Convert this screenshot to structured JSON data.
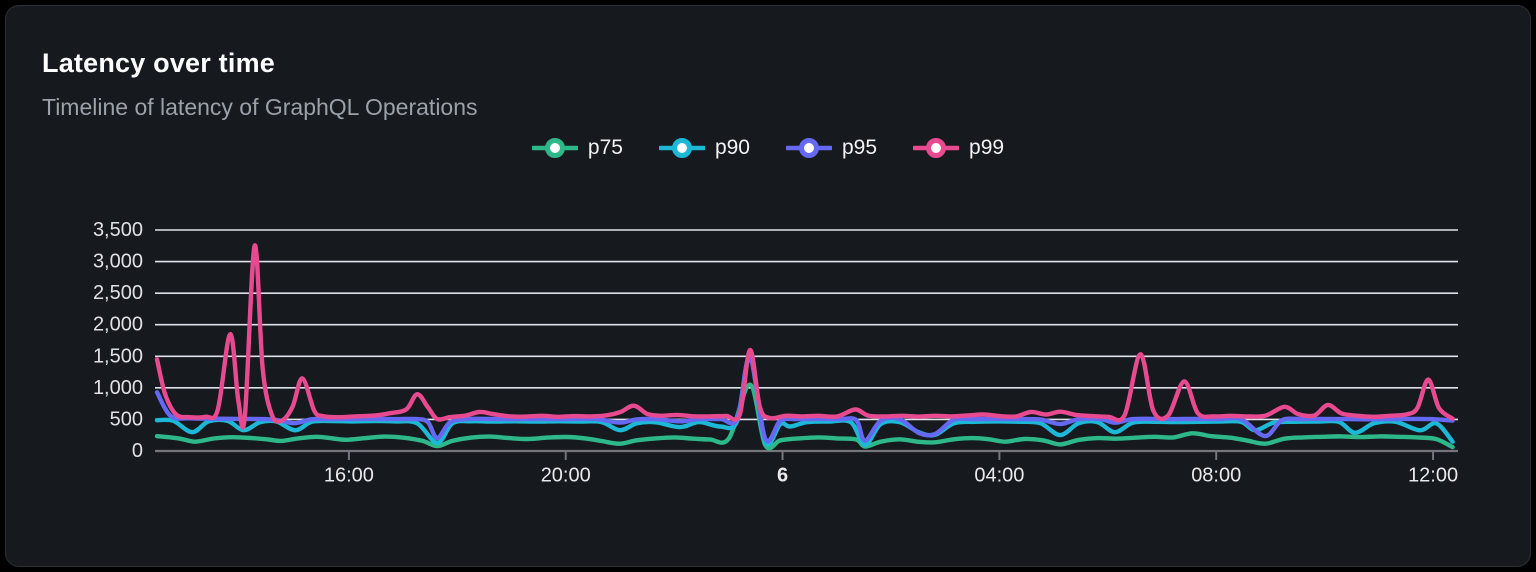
{
  "card": {
    "title": "Latency over time",
    "subtitle": "Timeline of latency of GraphQL Operations"
  },
  "colors": {
    "page_background": "#000000",
    "card_background": "#16191e",
    "card_border": "#2c2f35",
    "gridline": "#dfe2ea",
    "axis_line": "#73767c",
    "y_label": "#dfe1e6",
    "x_label": "#e8eaec",
    "title": "#ffffff",
    "subtitle": "#9ba1a9"
  },
  "chart_data": {
    "type": "line",
    "title": "Latency over time",
    "subtitle": "Timeline of latency of GraphQL Operations",
    "xlabel": "",
    "ylabel": "",
    "grid": "horizontal",
    "legend_position": "top-center",
    "y_axis": {
      "min": 0,
      "max": 3500,
      "step": 500,
      "tick_labels": [
        "0",
        "500",
        "1,000",
        "1,500",
        "2,000",
        "2,500",
        "3,000",
        "3,500"
      ]
    },
    "x_axis": {
      "span_hours": 24,
      "start_time": "12:30",
      "ticks": [
        {
          "t": 3.54,
          "label": "16:00",
          "bold": false
        },
        {
          "t": 7.54,
          "label": "20:00",
          "bold": false
        },
        {
          "t": 11.54,
          "label": "6",
          "bold": true
        },
        {
          "t": 15.54,
          "label": "04:00",
          "bold": false
        },
        {
          "t": 19.54,
          "label": "08:00",
          "bold": false
        },
        {
          "t": 23.54,
          "label": "12:00",
          "bold": false
        }
      ]
    },
    "series": [
      {
        "name": "p75",
        "color": "#2eb88a",
        "points": [
          [
            0,
            235
          ],
          [
            0.4,
            200
          ],
          [
            0.7,
            148
          ],
          [
            1.05,
            198
          ],
          [
            1.4,
            218
          ],
          [
            1.75,
            205
          ],
          [
            2.05,
            182
          ],
          [
            2.3,
            160
          ],
          [
            2.6,
            200
          ],
          [
            2.95,
            225
          ],
          [
            3.25,
            198
          ],
          [
            3.5,
            178
          ],
          [
            3.85,
            205
          ],
          [
            4.2,
            228
          ],
          [
            4.55,
            210
          ],
          [
            4.9,
            160
          ],
          [
            5.17,
            78
          ],
          [
            5.45,
            160
          ],
          [
            5.8,
            212
          ],
          [
            6.15,
            228
          ],
          [
            6.5,
            205
          ],
          [
            6.85,
            190
          ],
          [
            7.2,
            212
          ],
          [
            7.55,
            222
          ],
          [
            7.9,
            200
          ],
          [
            8.2,
            158
          ],
          [
            8.54,
            115
          ],
          [
            8.85,
            170
          ],
          [
            9.2,
            200
          ],
          [
            9.55,
            215
          ],
          [
            9.9,
            195
          ],
          [
            10.2,
            183
          ],
          [
            10.55,
            200
          ],
          [
            10.94,
            1050
          ],
          [
            11.22,
            95
          ],
          [
            11.5,
            170
          ],
          [
            11.85,
            200
          ],
          [
            12.2,
            215
          ],
          [
            12.55,
            200
          ],
          [
            12.9,
            182
          ],
          [
            13.06,
            72
          ],
          [
            13.35,
            148
          ],
          [
            13.7,
            185
          ],
          [
            14.05,
            145
          ],
          [
            14.35,
            138
          ],
          [
            14.7,
            185
          ],
          [
            15.05,
            205
          ],
          [
            15.35,
            185
          ],
          [
            15.65,
            148
          ],
          [
            16,
            190
          ],
          [
            16.35,
            168
          ],
          [
            16.66,
            105
          ],
          [
            17,
            175
          ],
          [
            17.35,
            205
          ],
          [
            17.7,
            195
          ],
          [
            18.05,
            210
          ],
          [
            18.4,
            225
          ],
          [
            18.75,
            215
          ],
          [
            19.1,
            280
          ],
          [
            19.45,
            235
          ],
          [
            19.8,
            210
          ],
          [
            20.1,
            168
          ],
          [
            20.44,
            115
          ],
          [
            20.8,
            195
          ],
          [
            21.15,
            215
          ],
          [
            21.5,
            225
          ],
          [
            21.85,
            232
          ],
          [
            22.2,
            220
          ],
          [
            22.55,
            232
          ],
          [
            22.9,
            225
          ],
          [
            23.25,
            215
          ],
          [
            23.6,
            188
          ],
          [
            23.9,
            62
          ]
        ]
      },
      {
        "name": "p90",
        "color": "#1cb8d6",
        "points": [
          [
            0,
            488
          ],
          [
            0.3,
            478
          ],
          [
            0.65,
            298
          ],
          [
            0.95,
            468
          ],
          [
            1.3,
            478
          ],
          [
            1.6,
            330
          ],
          [
            1.9,
            455
          ],
          [
            2.2,
            468
          ],
          [
            2.55,
            328
          ],
          [
            2.85,
            462
          ],
          [
            3.2,
            475
          ],
          [
            3.6,
            468
          ],
          [
            4,
            475
          ],
          [
            4.4,
            468
          ],
          [
            4.8,
            438
          ],
          [
            5.17,
            128
          ],
          [
            5.45,
            438
          ],
          [
            5.8,
            470
          ],
          [
            6.2,
            466
          ],
          [
            6.6,
            470
          ],
          [
            7,
            466
          ],
          [
            7.4,
            470
          ],
          [
            7.8,
            466
          ],
          [
            8.2,
            458
          ],
          [
            8.54,
            330
          ],
          [
            8.85,
            438
          ],
          [
            9.2,
            455
          ],
          [
            9.65,
            378
          ],
          [
            10,
            458
          ],
          [
            10.39,
            388
          ],
          [
            10.7,
            468
          ],
          [
            10.94,
            1480
          ],
          [
            11.22,
            148
          ],
          [
            11.5,
            428
          ],
          [
            11.68,
            388
          ],
          [
            12,
            458
          ],
          [
            12.4,
            466
          ],
          [
            12.8,
            455
          ],
          [
            13.06,
            98
          ],
          [
            13.35,
            428
          ],
          [
            13.7,
            458
          ],
          [
            14.05,
            298
          ],
          [
            14.35,
            255
          ],
          [
            14.7,
            438
          ],
          [
            15.1,
            462
          ],
          [
            15.5,
            468
          ],
          [
            15.9,
            462
          ],
          [
            16.3,
            438
          ],
          [
            16.66,
            252
          ],
          [
            17,
            438
          ],
          [
            17.35,
            458
          ],
          [
            17.67,
            298
          ],
          [
            18,
            448
          ],
          [
            18.4,
            462
          ],
          [
            18.8,
            458
          ],
          [
            19.2,
            462
          ],
          [
            19.6,
            466
          ],
          [
            20,
            462
          ],
          [
            20.26,
            328
          ],
          [
            20.6,
            448
          ],
          [
            21,
            462
          ],
          [
            21.4,
            466
          ],
          [
            21.8,
            462
          ],
          [
            22.1,
            288
          ],
          [
            22.45,
            438
          ],
          [
            22.85,
            462
          ],
          [
            23.3,
            328
          ],
          [
            23.6,
            438
          ],
          [
            23.9,
            148
          ]
        ]
      },
      {
        "name": "p95",
        "color": "#6569f2",
        "points": [
          [
            0,
            930
          ],
          [
            0.25,
            555
          ],
          [
            0.6,
            518
          ],
          [
            1,
            512
          ],
          [
            1.5,
            508
          ],
          [
            2,
            505
          ],
          [
            2.3,
            478
          ],
          [
            2.55,
            440
          ],
          [
            2.85,
            502
          ],
          [
            3.2,
            505
          ],
          [
            3.6,
            508
          ],
          [
            4,
            510
          ],
          [
            4.4,
            505
          ],
          [
            4.8,
            505
          ],
          [
            5,
            455
          ],
          [
            5.17,
            205
          ],
          [
            5.4,
            450
          ],
          [
            5.7,
            505
          ],
          [
            6.1,
            508
          ],
          [
            6.5,
            505
          ],
          [
            6.9,
            508
          ],
          [
            7.3,
            505
          ],
          [
            7.7,
            508
          ],
          [
            8.1,
            505
          ],
          [
            8.54,
            450
          ],
          [
            8.85,
            500
          ],
          [
            9.2,
            505
          ],
          [
            9.65,
            470
          ],
          [
            10,
            505
          ],
          [
            10.4,
            505
          ],
          [
            10.7,
            508
          ],
          [
            10.94,
            1495
          ],
          [
            11.22,
            195
          ],
          [
            11.5,
            478
          ],
          [
            11.8,
            505
          ],
          [
            12.2,
            508
          ],
          [
            12.6,
            505
          ],
          [
            12.9,
            488
          ],
          [
            13.06,
            165
          ],
          [
            13.35,
            478
          ],
          [
            13.7,
            505
          ],
          [
            14.05,
            288
          ],
          [
            14.35,
            268
          ],
          [
            14.7,
            495
          ],
          [
            15.1,
            505
          ],
          [
            15.5,
            508
          ],
          [
            15.9,
            505
          ],
          [
            16.3,
            498
          ],
          [
            16.66,
            428
          ],
          [
            17,
            502
          ],
          [
            17.4,
            505
          ],
          [
            17.67,
            448
          ],
          [
            18,
            505
          ],
          [
            18.4,
            508
          ],
          [
            18.8,
            505
          ],
          [
            19.2,
            508
          ],
          [
            19.6,
            505
          ],
          [
            20,
            502
          ],
          [
            20.44,
            238
          ],
          [
            20.75,
            488
          ],
          [
            21.1,
            505
          ],
          [
            21.5,
            508
          ],
          [
            21.9,
            505
          ],
          [
            22.3,
            502
          ],
          [
            22.7,
            505
          ],
          [
            23.1,
            508
          ],
          [
            23.5,
            505
          ],
          [
            23.9,
            482
          ]
        ]
      },
      {
        "name": "p99",
        "color": "#e84a8f",
        "points": [
          [
            0,
            1450
          ],
          [
            0.15,
            900
          ],
          [
            0.35,
            580
          ],
          [
            0.6,
            535
          ],
          [
            0.9,
            542
          ],
          [
            1.12,
            650
          ],
          [
            1.35,
            1850
          ],
          [
            1.5,
            800
          ],
          [
            1.62,
            540
          ],
          [
            1.8,
            3250
          ],
          [
            1.95,
            1300
          ],
          [
            2.12,
            570
          ],
          [
            2.3,
            482
          ],
          [
            2.5,
            700
          ],
          [
            2.68,
            1150
          ],
          [
            2.9,
            640
          ],
          [
            3.05,
            555
          ],
          [
            3.35,
            535
          ],
          [
            3.7,
            550
          ],
          [
            4,
            560
          ],
          [
            4.3,
            598
          ],
          [
            4.6,
            660
          ],
          [
            4.8,
            900
          ],
          [
            5,
            690
          ],
          [
            5.17,
            505
          ],
          [
            5.4,
            535
          ],
          [
            5.7,
            562
          ],
          [
            5.95,
            618
          ],
          [
            6.2,
            585
          ],
          [
            6.5,
            550
          ],
          [
            6.8,
            545
          ],
          [
            7.1,
            558
          ],
          [
            7.4,
            542
          ],
          [
            7.7,
            552
          ],
          [
            8,
            548
          ],
          [
            8.3,
            565
          ],
          [
            8.55,
            618
          ],
          [
            8.8,
            718
          ],
          [
            9.05,
            585
          ],
          [
            9.3,
            558
          ],
          [
            9.6,
            572
          ],
          [
            9.9,
            550
          ],
          [
            10.2,
            548
          ],
          [
            10.5,
            555
          ],
          [
            10.75,
            575
          ],
          [
            10.94,
            1600
          ],
          [
            11.12,
            700
          ],
          [
            11.3,
            522
          ],
          [
            11.6,
            558
          ],
          [
            11.9,
            548
          ],
          [
            12.2,
            558
          ],
          [
            12.55,
            548
          ],
          [
            12.88,
            658
          ],
          [
            13.12,
            560
          ],
          [
            13.45,
            548
          ],
          [
            13.75,
            558
          ],
          [
            14.05,
            545
          ],
          [
            14.35,
            558
          ],
          [
            14.65,
            548
          ],
          [
            14.95,
            562
          ],
          [
            15.25,
            578
          ],
          [
            15.55,
            552
          ],
          [
            15.85,
            548
          ],
          [
            16.12,
            618
          ],
          [
            16.4,
            578
          ],
          [
            16.66,
            622
          ],
          [
            16.95,
            572
          ],
          [
            17.25,
            552
          ],
          [
            17.55,
            542
          ],
          [
            17.85,
            565
          ],
          [
            18.14,
            1530
          ],
          [
            18.38,
            640
          ],
          [
            18.65,
            560
          ],
          [
            18.95,
            1100
          ],
          [
            19.2,
            598
          ],
          [
            19.5,
            548
          ],
          [
            19.8,
            558
          ],
          [
            20.1,
            548
          ],
          [
            20.45,
            560
          ],
          [
            20.8,
            700
          ],
          [
            21.05,
            585
          ],
          [
            21.35,
            562
          ],
          [
            21.6,
            730
          ],
          [
            21.85,
            595
          ],
          [
            22.15,
            558
          ],
          [
            22.45,
            542
          ],
          [
            22.75,
            558
          ],
          [
            23.05,
            580
          ],
          [
            23.25,
            680
          ],
          [
            23.45,
            1130
          ],
          [
            23.65,
            680
          ],
          [
            23.9,
            512
          ]
        ]
      }
    ]
  }
}
